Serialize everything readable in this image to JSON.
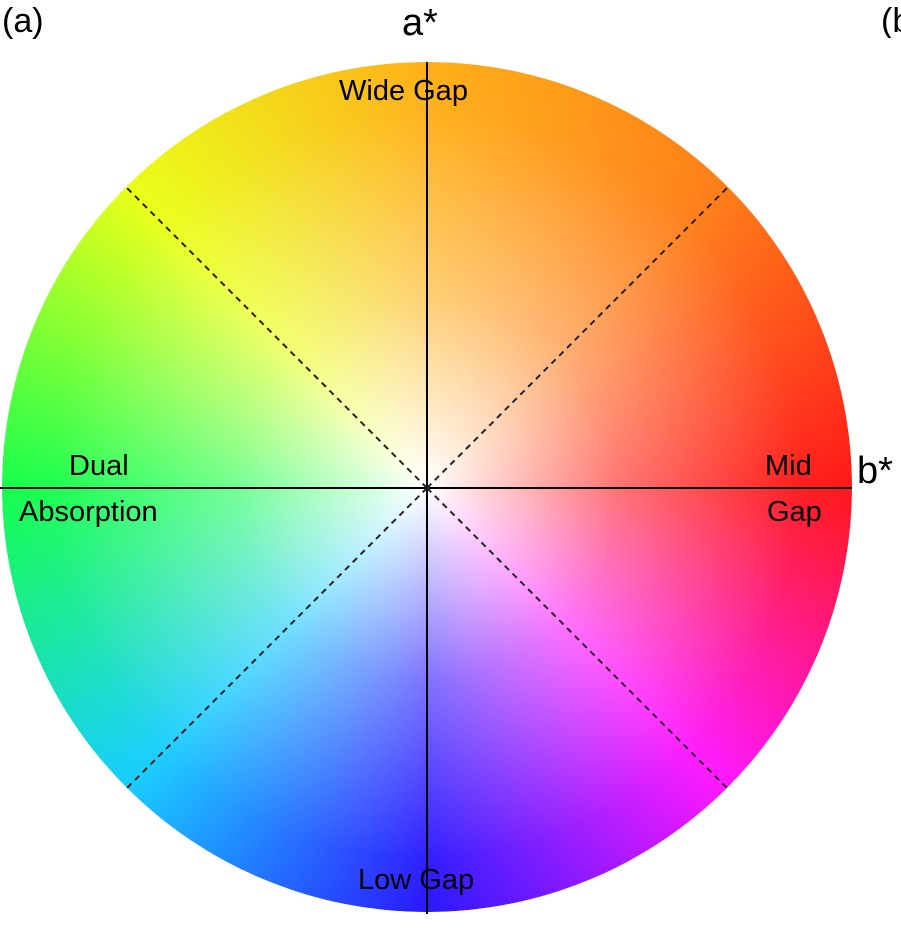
{
  "figure": {
    "panel_label": "(a)",
    "next_panel_label": "(b)",
    "axes": {
      "vertical": "a*",
      "horizontal": "b*"
    },
    "regions": {
      "top": "Wide Gap",
      "bottom": "Low Gap",
      "right_line1": "Mid",
      "right_line2": "Gap",
      "left_line1": "Dual",
      "left_line2": "Absorption"
    },
    "wheel_colors": {
      "top": "#ffa800",
      "top_right": "#ff7000",
      "right": "#ff0000",
      "bottom_right": "#ff00ff",
      "bottom": "#1400ff",
      "bottom_left": "#00c8ff",
      "left": "#00ff3a",
      "top_left": "#e8ff00",
      "center": "#ffffff"
    },
    "dividers": "dashed diagonal lines at 45°"
  }
}
